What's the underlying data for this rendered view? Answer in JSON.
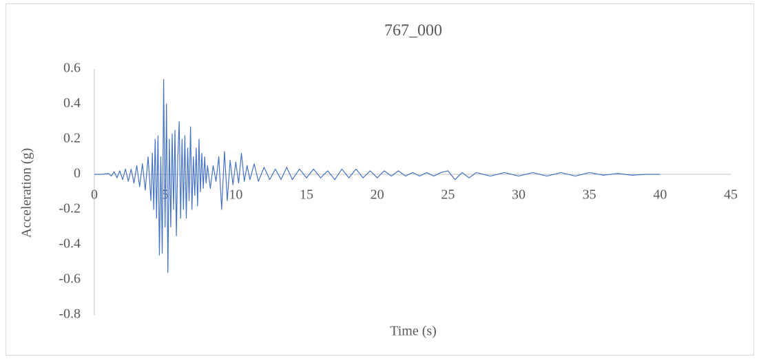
{
  "chart_data": {
    "type": "line",
    "title": "767_000",
    "x_label": "Time (s)",
    "y_label": "Acceleration (g)",
    "xlim": [
      0,
      45
    ],
    "xticks": [
      0,
      5,
      10,
      15,
      20,
      25,
      30,
      35,
      40,
      45
    ],
    "ylim": [
      -0.8,
      0.6
    ],
    "yticks": [
      0.6,
      0.4,
      0.2,
      0,
      -0.2,
      -0.4,
      -0.6,
      -0.8
    ],
    "grid": false,
    "x": [
      0,
      0.5,
      1,
      1.2,
      1.4,
      1.6,
      1.8,
      2,
      2.2,
      2.4,
      2.6,
      2.8,
      3,
      3.2,
      3.4,
      3.6,
      3.8,
      4,
      4.1,
      4.2,
      4.3,
      4.4,
      4.5,
      4.6,
      4.7,
      4.8,
      4.9,
      5,
      5.1,
      5.2,
      5.3,
      5.4,
      5.5,
      5.6,
      5.7,
      5.8,
      5.9,
      6,
      6.1,
      6.2,
      6.3,
      6.4,
      6.5,
      6.6,
      6.7,
      6.8,
      6.9,
      7,
      7.1,
      7.2,
      7.3,
      7.4,
      7.5,
      7.6,
      7.7,
      7.8,
      7.9,
      8,
      8.2,
      8.4,
      8.6,
      8.8,
      9,
      9.2,
      9.4,
      9.6,
      9.8,
      10,
      10.2,
      10.4,
      10.6,
      10.8,
      11,
      11.3,
      11.6,
      12,
      12.4,
      12.8,
      13.2,
      13.6,
      14,
      14.5,
      15,
      15.5,
      16,
      16.5,
      17,
      17.5,
      18,
      18.5,
      19,
      19.5,
      20,
      20.5,
      21,
      21.5,
      22,
      22.5,
      23,
      23.5,
      24,
      24.5,
      25,
      25.5,
      26,
      26.5,
      27,
      28,
      29,
      30,
      31,
      32,
      33,
      34,
      35,
      36,
      37,
      38,
      39,
      40
    ],
    "series": [
      {
        "name": "767_000",
        "color": "#4472c4",
        "values": [
          0,
          0,
          0.005,
          -0.01,
          0.015,
          -0.02,
          0.02,
          -0.03,
          0.03,
          -0.04,
          0.03,
          -0.05,
          0.05,
          -0.07,
          0.06,
          -0.09,
          0.1,
          -0.15,
          0.12,
          -0.2,
          0.2,
          -0.25,
          0.22,
          -0.46,
          0.1,
          -0.45,
          0.54,
          -0.3,
          0.4,
          -0.56,
          0.2,
          -0.3,
          0.23,
          -0.2,
          0.25,
          -0.35,
          0.1,
          0.3,
          -0.25,
          0.2,
          -0.2,
          0.22,
          -0.25,
          0.15,
          -0.15,
          0.27,
          -0.2,
          0.1,
          -0.12,
          0.15,
          -0.18,
          0.2,
          -0.1,
          0.12,
          -0.08,
          0.1,
          -0.05,
          0.05,
          -0.08,
          0.05,
          -0.04,
          0.1,
          -0.2,
          0.13,
          -0.15,
          0.08,
          -0.06,
          0.07,
          -0.05,
          0.12,
          -0.04,
          0.05,
          -0.03,
          0.06,
          -0.04,
          0.04,
          -0.03,
          0.03,
          -0.03,
          0.04,
          -0.03,
          0.03,
          -0.02,
          0.03,
          -0.02,
          0.02,
          -0.03,
          0.03,
          -0.02,
          0.03,
          -0.02,
          0.02,
          -0.02,
          0.02,
          -0.01,
          0.02,
          -0.01,
          0.01,
          -0.01,
          0.01,
          -0.01,
          0.01,
          0.02,
          -0.03,
          0.01,
          -0.02,
          0.01,
          -0.01,
          0.01,
          -0.01,
          0.01,
          -0.01,
          0.01,
          -0.01,
          0.01,
          -0.005,
          0.005,
          -0.005,
          0,
          0
        ]
      }
    ]
  }
}
